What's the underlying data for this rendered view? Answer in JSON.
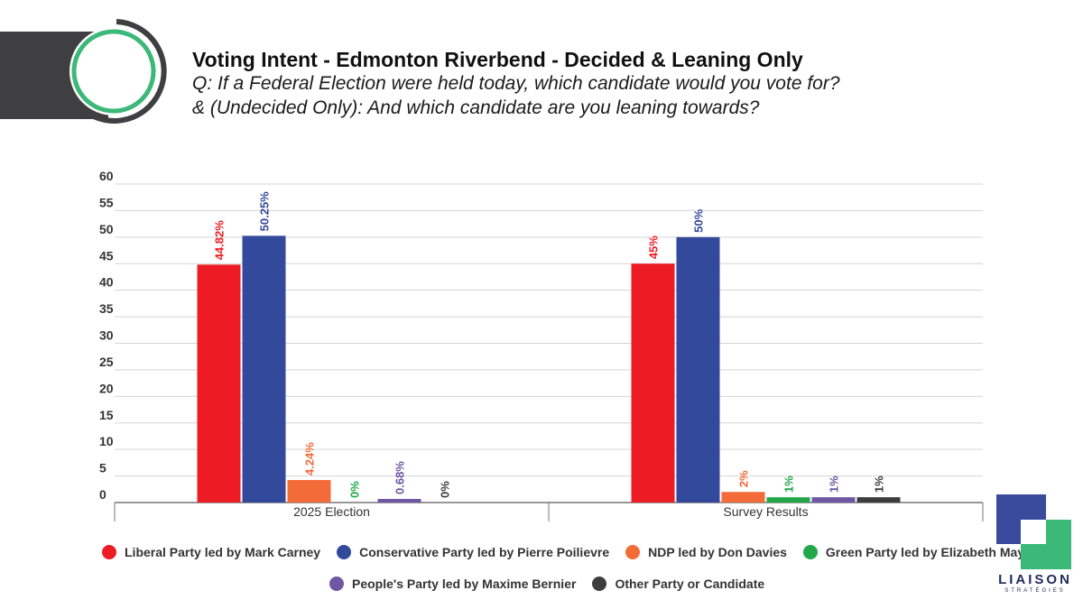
{
  "header": {
    "title": "Voting Intent - Edmonton Riverbend - Decided & Leaning Only",
    "question_line1": "Q: If a Federal Election were held today, which candidate would you vote for?",
    "question_line2": "& (Undecided Only): And which candidate are you leaning towards?"
  },
  "chart_data": {
    "type": "bar",
    "title": "Voting Intent - Edmonton Riverbend - Decided & Leaning Only",
    "xlabel": "",
    "ylabel": "",
    "ylim": [
      0,
      60
    ],
    "yticks": [
      0,
      5,
      10,
      15,
      20,
      25,
      30,
      35,
      40,
      45,
      50,
      55,
      60
    ],
    "grid": true,
    "legend_position": "bottom",
    "categories": [
      "2025 Election",
      "Survey Results"
    ],
    "series": [
      {
        "name": "Liberal Party led by Mark Carney",
        "color": "#ed1c24",
        "values": [
          44.82,
          45
        ],
        "labels": [
          "44.82%",
          "45%"
        ]
      },
      {
        "name": "Conservative Party led by Pierre Poilievre",
        "color": "#334a9c",
        "values": [
          50.25,
          50
        ],
        "labels": [
          "50.25%",
          "50%"
        ]
      },
      {
        "name": "NDP led by Don Davies",
        "color": "#f26b38",
        "values": [
          4.24,
          2
        ],
        "labels": [
          "4.24%",
          "2%"
        ]
      },
      {
        "name": "Green Party led by Elizabeth May",
        "color": "#22a84a",
        "values": [
          0,
          1
        ],
        "labels": [
          "0%",
          "1%"
        ]
      },
      {
        "name": "People's Party led by Maxime Bernier",
        "color": "#6f57a6",
        "values": [
          0.68,
          1
        ],
        "labels": [
          "0.68%",
          "1%"
        ]
      },
      {
        "name": "Other Party or Candidate",
        "color": "#3d3d3d",
        "values": [
          0,
          1
        ],
        "labels": [
          "0%",
          "1%"
        ]
      }
    ]
  },
  "legend": [
    {
      "label": "Liberal Party led by Mark Carney",
      "color": "#ed1c24"
    },
    {
      "label": "Conservative Party led by Pierre Poilievre",
      "color": "#334a9c"
    },
    {
      "label": "NDP led by Don Davies",
      "color": "#f26b38"
    },
    {
      "label": "Green Party led by Elizabeth May",
      "color": "#22a84a"
    },
    {
      "label": "People's Party led by Maxime Bernier",
      "color": "#6f57a6"
    },
    {
      "label": "Other Party or Candidate",
      "color": "#3d3d3d"
    }
  ],
  "brand": {
    "name": "LIAISON",
    "tagline": "STRATÉGIES"
  },
  "colors": {
    "header_bar": "#3f3f41",
    "accent_green": "#3cb878",
    "brand_navy": "#1f2a5c"
  }
}
